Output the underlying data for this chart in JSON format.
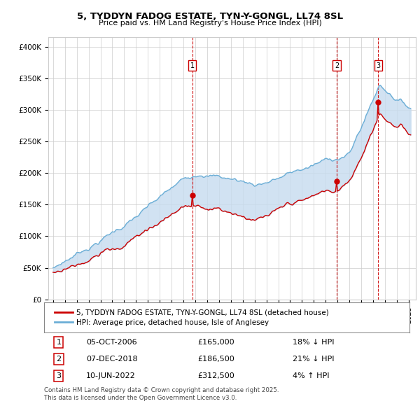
{
  "title": "5, TYDDYN FADOG ESTATE, TYN-Y-GONGL, LL74 8SL",
  "subtitle": "Price paid vs. HM Land Registry's House Price Index (HPI)",
  "ylabel_ticks": [
    "£0",
    "£50K",
    "£100K",
    "£150K",
    "£200K",
    "£250K",
    "£300K",
    "£350K",
    "£400K"
  ],
  "ytick_values": [
    0,
    50000,
    100000,
    150000,
    200000,
    250000,
    300000,
    350000,
    400000
  ],
  "ylim": [
    0,
    415000
  ],
  "hpi_color": "#6baed6",
  "hpi_fill_color": "#c6dbef",
  "price_color": "#cc0000",
  "transactions": [
    {
      "date_num": 2006.76,
      "price": 165000,
      "label": "1"
    },
    {
      "date_num": 2018.93,
      "price": 186500,
      "label": "2"
    },
    {
      "date_num": 2022.44,
      "price": 312500,
      "label": "3"
    }
  ],
  "legend_entry1": "5, TYDDYN FADOG ESTATE, TYN-Y-GONGL, LL74 8SL (detached house)",
  "legend_entry2": "HPI: Average price, detached house, Isle of Anglesey",
  "annotation1_label": "1",
  "annotation1_date": "05-OCT-2006",
  "annotation1_price": "£165,000",
  "annotation1_hpi": "18% ↓ HPI",
  "annotation2_label": "2",
  "annotation2_date": "07-DEC-2018",
  "annotation2_price": "£186,500",
  "annotation2_hpi": "21% ↓ HPI",
  "annotation3_label": "3",
  "annotation3_date": "10-JUN-2022",
  "annotation3_price": "£312,500",
  "annotation3_hpi": "4% ↑ HPI",
  "footer": "Contains HM Land Registry data © Crown copyright and database right 2025.\nThis data is licensed under the Open Government Licence v3.0.",
  "vline_color": "#cc0000",
  "grid_color": "#cccccc",
  "background_color": "#ffffff"
}
